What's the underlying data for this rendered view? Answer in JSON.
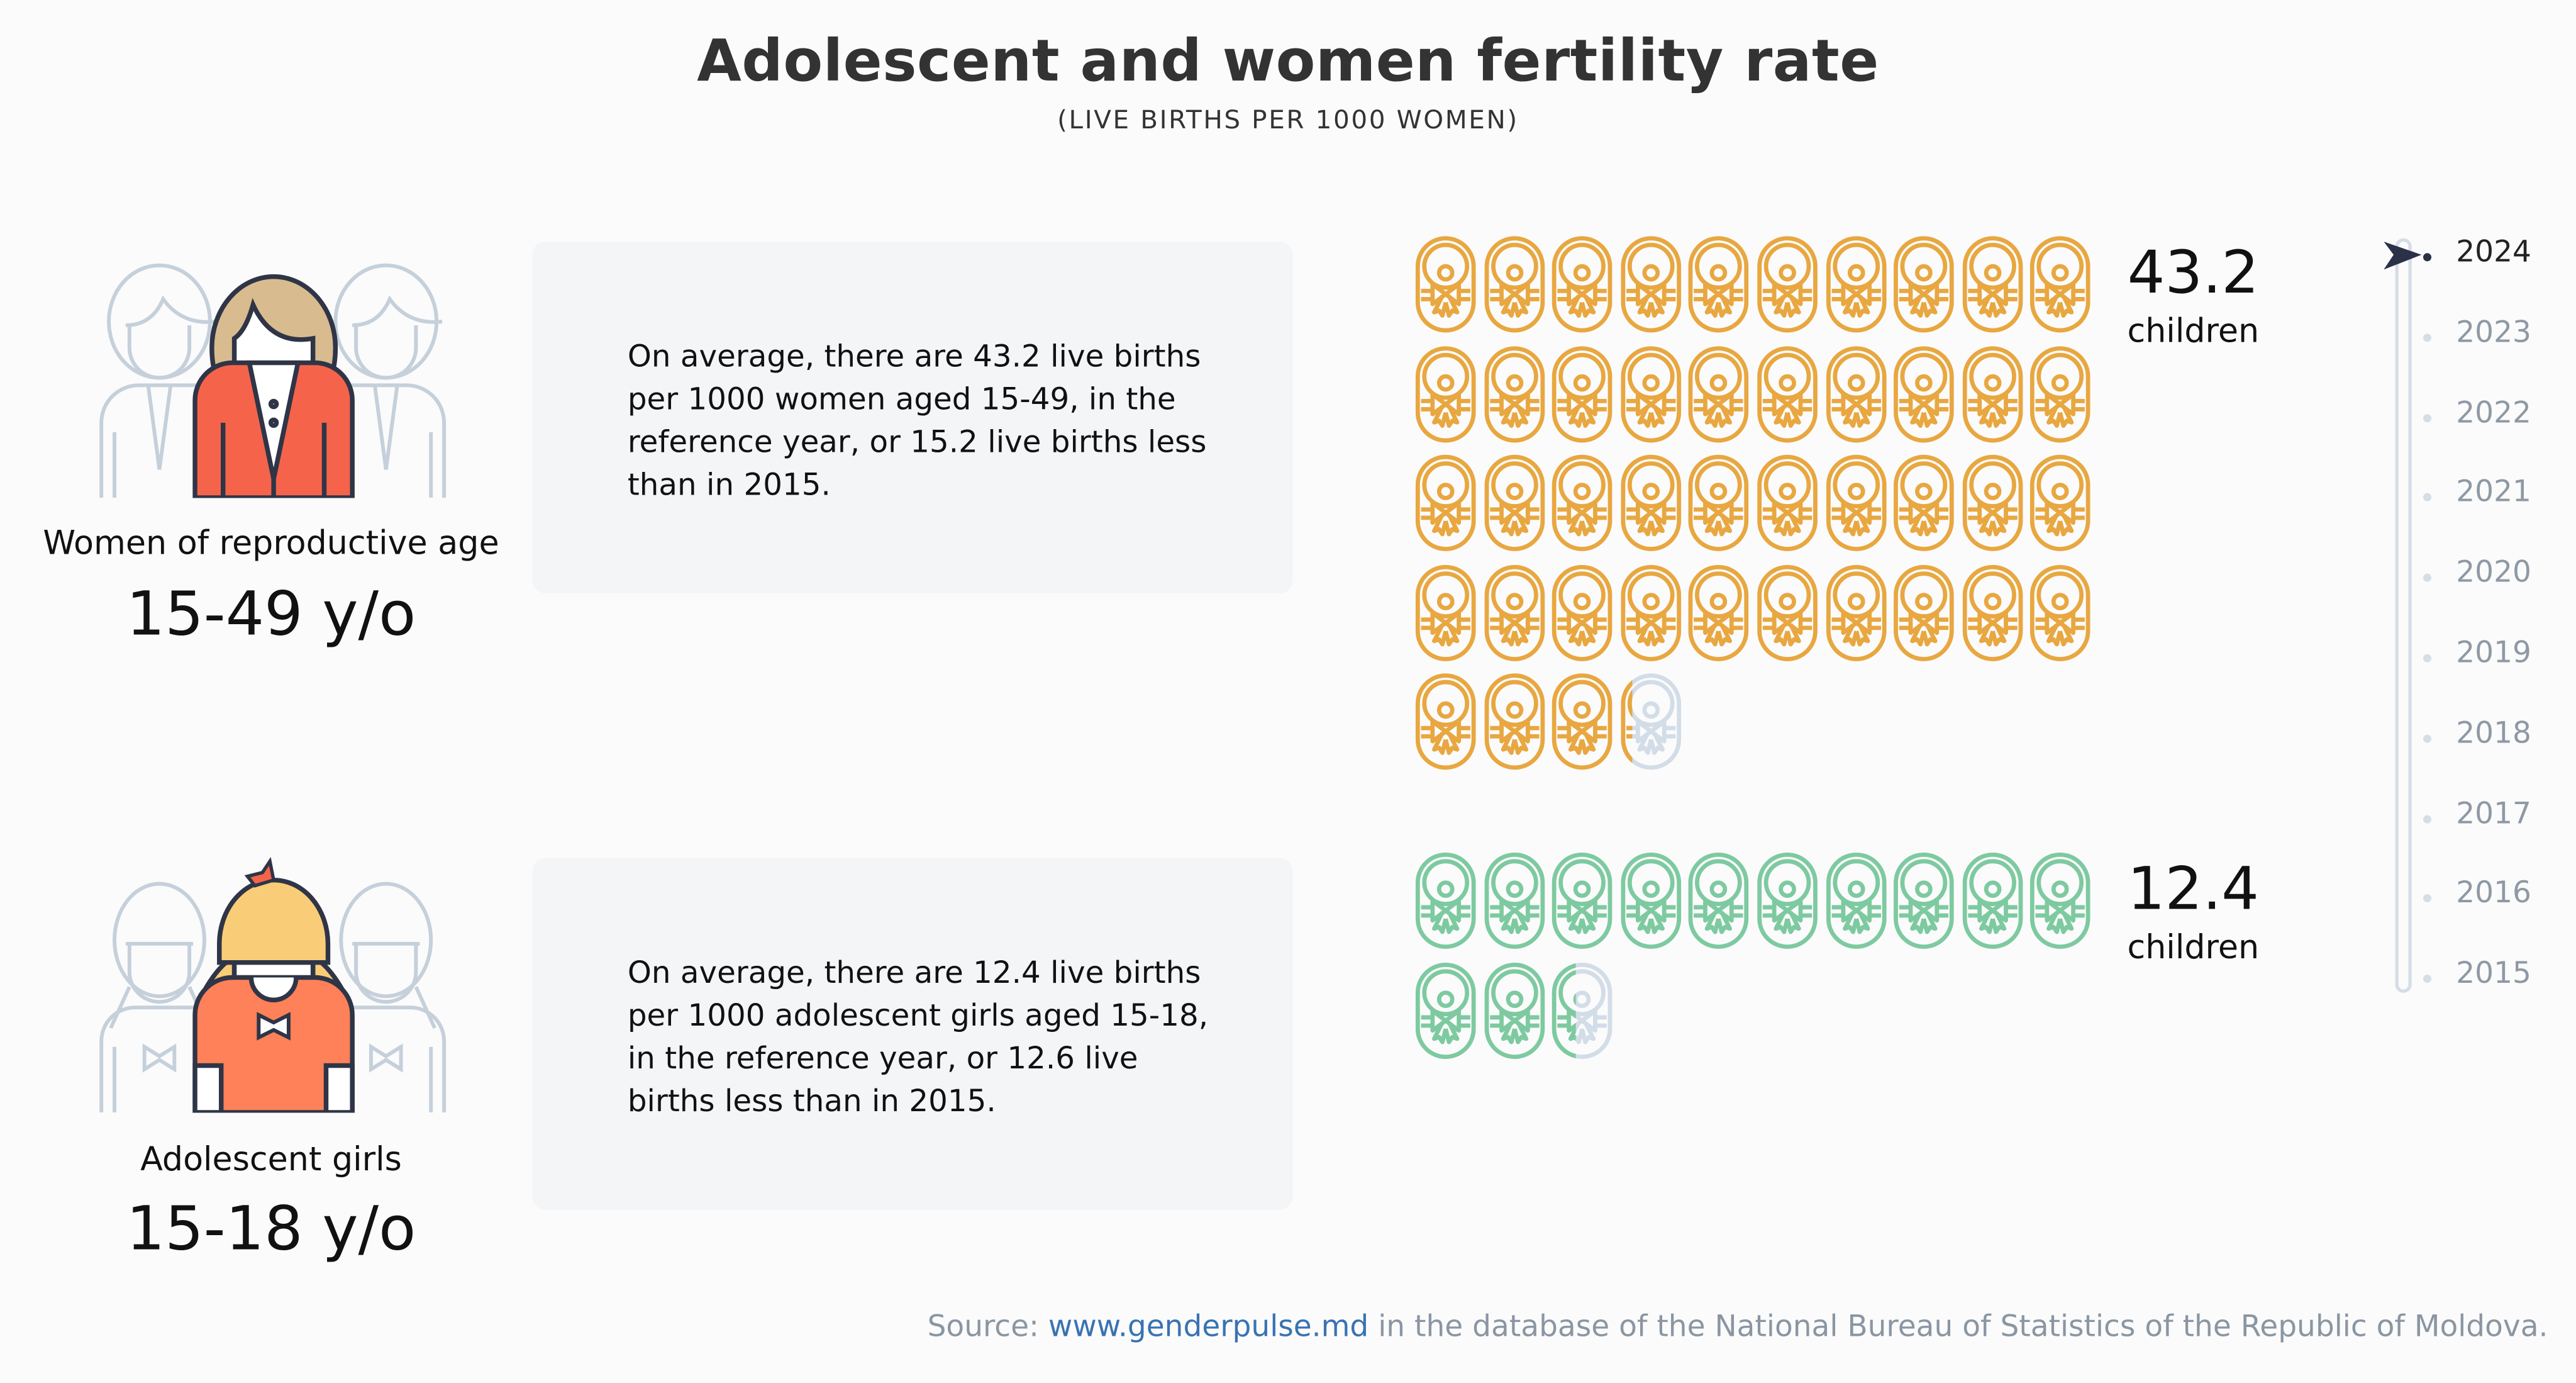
{
  "header": {
    "title": "Adolescent and women fertility rate",
    "subtitle": "(LIVE BIRTHS PER 1000 WOMEN)"
  },
  "groups": [
    {
      "label": "Women of reproductive age",
      "age": "15-49 y/o",
      "description": "On average, there are 43.2 live births per 1000 women aged 15-49, in the reference year, or 15.2 live births less than in 2015.",
      "value": 43.2,
      "value_text": "43.2",
      "unit": "children",
      "icon_color": "#e8a740",
      "figure_colors": {
        "hair": "#d8bb8f",
        "body": "#f5644a"
      }
    },
    {
      "label": "Adolescent girls",
      "age": "15-18 y/o",
      "description": "On average, there are 12.4 live births per 1000 adolescent girls aged 15-18, in the reference year, or 12.6 live births less than in 2015.",
      "value": 12.4,
      "value_text": "12.4",
      "unit": "children",
      "icon_color": "#7ecaa0",
      "figure_colors": {
        "hair": "#f9cd78",
        "body": "#ff8159"
      }
    }
  ],
  "icons": {
    "per_icon": 1,
    "per_row": 10,
    "empty_color": "#d3dde8",
    "name": "baby-icon"
  },
  "timeline": {
    "selected": "2024",
    "years": [
      "2024",
      "2023",
      "2022",
      "2021",
      "2020",
      "2019",
      "2018",
      "2017",
      "2016",
      "2015"
    ]
  },
  "source": {
    "prefix": "Source: ",
    "link": "www.genderpulse.md",
    "suffix": " in the database of the National Bureau of Statistics of the Republic of Moldova."
  },
  "colors": {
    "outline": "#2f3547",
    "ghost": "#c5d0da",
    "link": "#3873b2"
  }
}
